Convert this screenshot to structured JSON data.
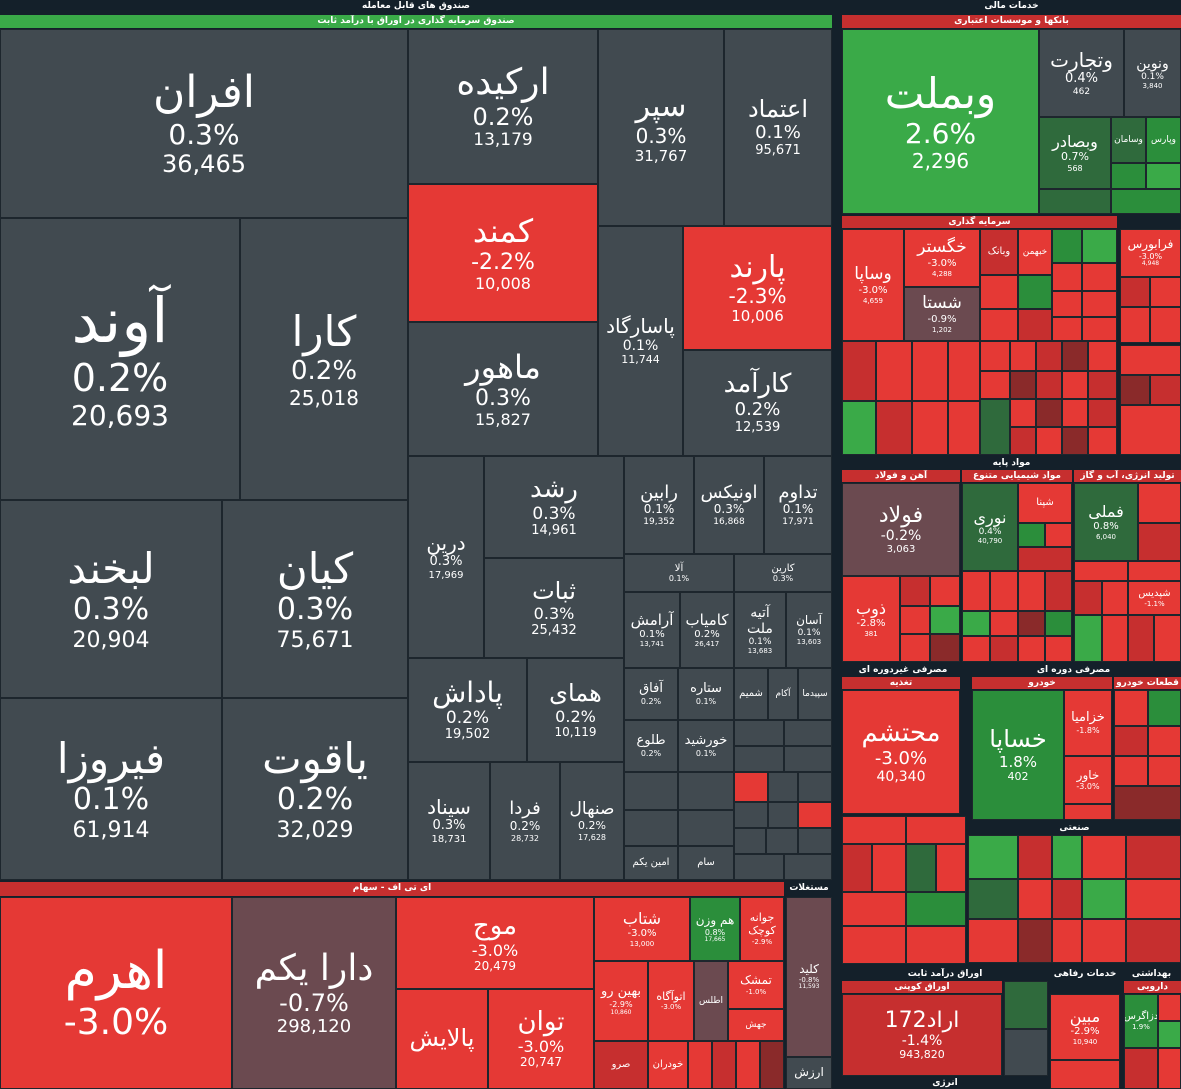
{
  "colors": {
    "red": "#e53935",
    "green": "#3aaa48",
    "neutral": "#414a50",
    "background": "#14202a"
  },
  "sectors": [
    {
      "id": "funds",
      "label": "صندوق های قابل معامله",
      "sub": "صندوق سرمایه گذاری در اوراق با درآمد ثابت"
    },
    {
      "id": "fin",
      "label": "خدمات مالی",
      "sub": "بانکها و موسسات اعتباری"
    },
    {
      "id": "inv",
      "label": "سرمایه گذاری"
    },
    {
      "id": "base",
      "label": "مواد پایه"
    },
    {
      "id": "iron",
      "label": "آهن و فولاد"
    },
    {
      "id": "chem",
      "label": "مواد شیمیایی متنوع"
    },
    {
      "id": "util",
      "label": "تولید انرژی، آب و گاز"
    },
    {
      "id": "nondur",
      "label": "مصرفی غیردوره ای"
    },
    {
      "id": "nutr",
      "label": "تغذیه"
    },
    {
      "id": "cyc",
      "label": "مصرفی دوره ای"
    },
    {
      "id": "auto",
      "label": "خودرو"
    },
    {
      "id": "parts",
      "label": "قطعات خودرو"
    },
    {
      "id": "ind",
      "label": "صنعتی"
    },
    {
      "id": "etf",
      "label": "ای تی اف - سهام"
    },
    {
      "id": "fixed",
      "label": "اوراق درآمد ثابت"
    },
    {
      "id": "coupon",
      "label": "اوراق کوپنی"
    },
    {
      "id": "welfare",
      "label": "خدمات رفاهی"
    },
    {
      "id": "health",
      "label": "بهداشتی"
    },
    {
      "id": "drug",
      "label": "دارویی"
    },
    {
      "id": "energy",
      "label": "انرژی"
    },
    {
      "id": "more",
      "label": "مستغلات"
    }
  ],
  "tiles": [
    {
      "name": "افران",
      "pct": "0.3%",
      "val": "36,465"
    },
    {
      "name": "ارکیده",
      "pct": "0.2%",
      "val": "13,179"
    },
    {
      "name": "سپر",
      "pct": "0.3%",
      "val": "31,767"
    },
    {
      "name": "اعتماد",
      "pct": "0.1%",
      "val": "95,671"
    },
    {
      "name": "کمند",
      "pct": "-2.2%",
      "val": "10,008"
    },
    {
      "name": "پارند",
      "pct": "-2.3%",
      "val": "10,006"
    },
    {
      "name": "آوند",
      "pct": "0.2%",
      "val": "20,693"
    },
    {
      "name": "کارا",
      "pct": "0.2%",
      "val": "25,018"
    },
    {
      "name": "ماهور",
      "pct": "0.3%",
      "val": "15,827"
    },
    {
      "name": "پاسارگاد",
      "pct": "0.1%",
      "val": "11,744"
    },
    {
      "name": "کارآمد",
      "pct": "0.2%",
      "val": "12,539"
    },
    {
      "name": "لبخند",
      "pct": "0.3%",
      "val": "20,904"
    },
    {
      "name": "کیان",
      "pct": "0.3%",
      "val": "75,671"
    },
    {
      "name": "درین",
      "pct": "0.3%",
      "val": "17,969"
    },
    {
      "name": "رشد",
      "pct": "0.3%",
      "val": "14,961"
    },
    {
      "name": "رابین",
      "pct": "0.1%",
      "val": "19,352"
    },
    {
      "name": "اونیکس",
      "pct": "0.3%",
      "val": "16,868"
    },
    {
      "name": "تداوم",
      "pct": "0.1%",
      "val": "17,971"
    },
    {
      "name": "ثبات",
      "pct": "0.3%",
      "val": "25,432"
    },
    {
      "name": "آلا",
      "pct": "0.1%",
      "val": ""
    },
    {
      "name": "کارین",
      "pct": "0.3%",
      "val": ""
    },
    {
      "name": "آرامش",
      "pct": "0.1%",
      "val": "13,741"
    },
    {
      "name": "کامیاب",
      "pct": "0.2%",
      "val": "26,417"
    },
    {
      "name": "آتیه ملت",
      "pct": "0.1%",
      "val": "13,683"
    },
    {
      "name": "آسان",
      "pct": "0.1%",
      "val": "13,603"
    },
    {
      "name": "فیروزا",
      "pct": "0.1%",
      "val": "61,914"
    },
    {
      "name": "یاقوت",
      "pct": "0.2%",
      "val": "32,029"
    },
    {
      "name": "پاداش",
      "pct": "0.2%",
      "val": "19,502"
    },
    {
      "name": "همای",
      "pct": "0.2%",
      "val": "10,119"
    },
    {
      "name": "آفاق",
      "pct": "0.2%",
      "val": ""
    },
    {
      "name": "ستاره",
      "pct": "0.1%",
      "val": ""
    },
    {
      "name": "شمیم",
      "pct": "",
      "val": ""
    },
    {
      "name": "آکام",
      "pct": "",
      "val": ""
    },
    {
      "name": "سپیدما",
      "pct": "",
      "val": ""
    },
    {
      "name": "طلوع",
      "pct": "0.2%",
      "val": ""
    },
    {
      "name": "خورشید",
      "pct": "0.1%",
      "val": ""
    },
    {
      "name": "سیناد",
      "pct": "0.3%",
      "val": "18,731"
    },
    {
      "name": "فردا",
      "pct": "0.2%",
      "val": "28,732"
    },
    {
      "name": "صنهال",
      "pct": "0.2%",
      "val": "17,628"
    },
    {
      "name": "امین یکم",
      "pct": "",
      "val": ""
    },
    {
      "name": "سام",
      "pct": "",
      "val": ""
    },
    {
      "name": "وبملت",
      "pct": "2.6%",
      "val": "2,296"
    },
    {
      "name": "وتجارت",
      "pct": "0.4%",
      "val": "462"
    },
    {
      "name": "ونوین",
      "pct": "0.1%",
      "val": "3,840"
    },
    {
      "name": "وبصادر",
      "pct": "0.7%",
      "val": "568"
    },
    {
      "name": "وسامان",
      "pct": "",
      "val": ""
    },
    {
      "name": "وپارس",
      "pct": "",
      "val": ""
    },
    {
      "name": "وساپا",
      "pct": "-3.0%",
      "val": "4,659"
    },
    {
      "name": "خگستر",
      "pct": "-3.0%",
      "val": "4,288"
    },
    {
      "name": "شستا",
      "pct": "-0.9%",
      "val": "1,202"
    },
    {
      "name": "وبانک",
      "pct": "",
      "val": ""
    },
    {
      "name": "خبهمن",
      "pct": "",
      "val": ""
    },
    {
      "name": "فرابورس",
      "pct": "-3.0%",
      "val": "4,948"
    },
    {
      "name": "فولاد",
      "pct": "-0.2%",
      "val": "3,063"
    },
    {
      "name": "ذوب",
      "pct": "-2.8%",
      "val": "381"
    },
    {
      "name": "نوری",
      "pct": "0.4%",
      "val": "40,790"
    },
    {
      "name": "فملی",
      "pct": "0.8%",
      "val": "6,040"
    },
    {
      "name": "شپنا",
      "pct": "",
      "val": ""
    },
    {
      "name": "شپدیس",
      "pct": "-1.1%",
      "val": ""
    },
    {
      "name": "محتشم",
      "pct": "-3.0%",
      "val": "40,340"
    },
    {
      "name": "خساپا",
      "pct": "1.8%",
      "val": "402"
    },
    {
      "name": "خزامیا",
      "pct": "-1.8%",
      "val": ""
    },
    {
      "name": "خاور",
      "pct": "-3.0%",
      "val": ""
    },
    {
      "name": "اهرم",
      "pct": "-3.0%",
      "val": ""
    },
    {
      "name": "دارا یکم",
      "pct": "-0.7%",
      "val": "298,120"
    },
    {
      "name": "موج",
      "pct": "-3.0%",
      "val": "20,479"
    },
    {
      "name": "توان",
      "pct": "-3.0%",
      "val": "20,747"
    },
    {
      "name": "پالایش",
      "pct": "",
      "val": ""
    },
    {
      "name": "شتاب",
      "pct": "-3.0%",
      "val": "13,000"
    },
    {
      "name": "هم وزن",
      "pct": "0.8%",
      "val": "17,665"
    },
    {
      "name": "جوانه کوچک",
      "pct": "-2.9%",
      "val": ""
    },
    {
      "name": "بهین رو",
      "pct": "-2.9%",
      "val": "10,860"
    },
    {
      "name": "اتوآگاه",
      "pct": "-3.0%",
      "val": ""
    },
    {
      "name": "اطلس",
      "pct": "",
      "val": ""
    },
    {
      "name": "تمشک",
      "pct": "-1.0%",
      "val": ""
    },
    {
      "name": "جهش",
      "pct": "",
      "val": ""
    },
    {
      "name": "خودران",
      "pct": "",
      "val": ""
    },
    {
      "name": "صرو",
      "pct": "",
      "val": ""
    },
    {
      "name": "کلید",
      "pct": "-0.8%",
      "val": "11,593"
    },
    {
      "name": "ارزش",
      "pct": "",
      "val": ""
    },
    {
      "name": "اراد172",
      "pct": "-1.4%",
      "val": "943,820"
    },
    {
      "name": "مبین",
      "pct": "-2.9%",
      "val": "10,940"
    },
    {
      "name": "دزاگرس",
      "pct": "1.9%",
      "val": ""
    }
  ]
}
